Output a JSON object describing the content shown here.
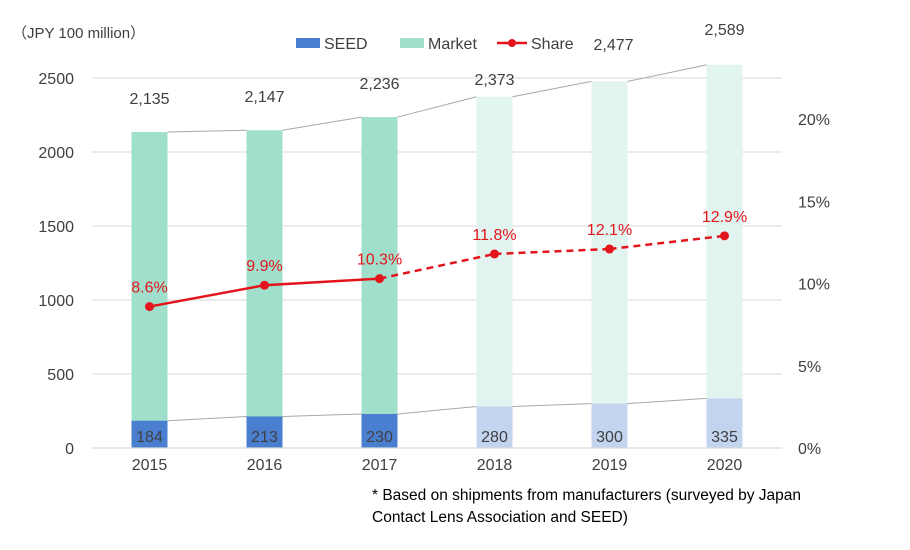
{
  "chart_data": {
    "type": "bar",
    "unit_label": "（JPY 100 million）",
    "categories": [
      "2015",
      "2016",
      "2017",
      "2018",
      "2019",
      "2020"
    ],
    "actual_years": [
      "2015",
      "2016",
      "2017"
    ],
    "forecast_years": [
      "2018",
      "2019",
      "2020"
    ],
    "series": [
      {
        "name": "SEED",
        "values": [
          184,
          213,
          230,
          280,
          300,
          335
        ],
        "labels": [
          "184",
          "213",
          "230",
          "280",
          "300",
          "335"
        ]
      },
      {
        "name": "Market",
        "values": [
          2135,
          2147,
          2236,
          2373,
          2477,
          2589
        ],
        "labels": [
          "2,135",
          "2,147",
          "2,236",
          "2,373",
          "2,477",
          "2,589"
        ]
      },
      {
        "name": "Share",
        "axis": "right",
        "values": [
          8.6,
          9.9,
          10.3,
          11.8,
          12.1,
          12.9
        ],
        "labels": [
          "8.6%",
          "9.9%",
          "10.3%",
          "11.8%",
          "12.1%",
          "12.9%"
        ]
      }
    ],
    "y_left": {
      "min": 0,
      "max": 2500,
      "ticks": [
        "0",
        "500",
        "1000",
        "1500",
        "2000",
        "2500"
      ]
    },
    "y_right": {
      "min": 0,
      "max": 22.5,
      "ticks": [
        "0%",
        "5%",
        "10%",
        "15%",
        "20%"
      ]
    },
    "legend_position": "top",
    "grid": true,
    "footnote": [
      "* Based on shipments  from manufacturers  (surveyed by Japan",
      "Contact Lens Association and SEED)"
    ],
    "colors": {
      "seed_actual": "#4a7fd0",
      "seed_forecast": "#c3d4ef",
      "market_actual": "#a0dfcb",
      "market_forecast": "#e2f4ef",
      "share_line": "#e3141c",
      "connector": "#a8a8a8",
      "grid": "#d9d9d9",
      "text": "#404040"
    }
  }
}
